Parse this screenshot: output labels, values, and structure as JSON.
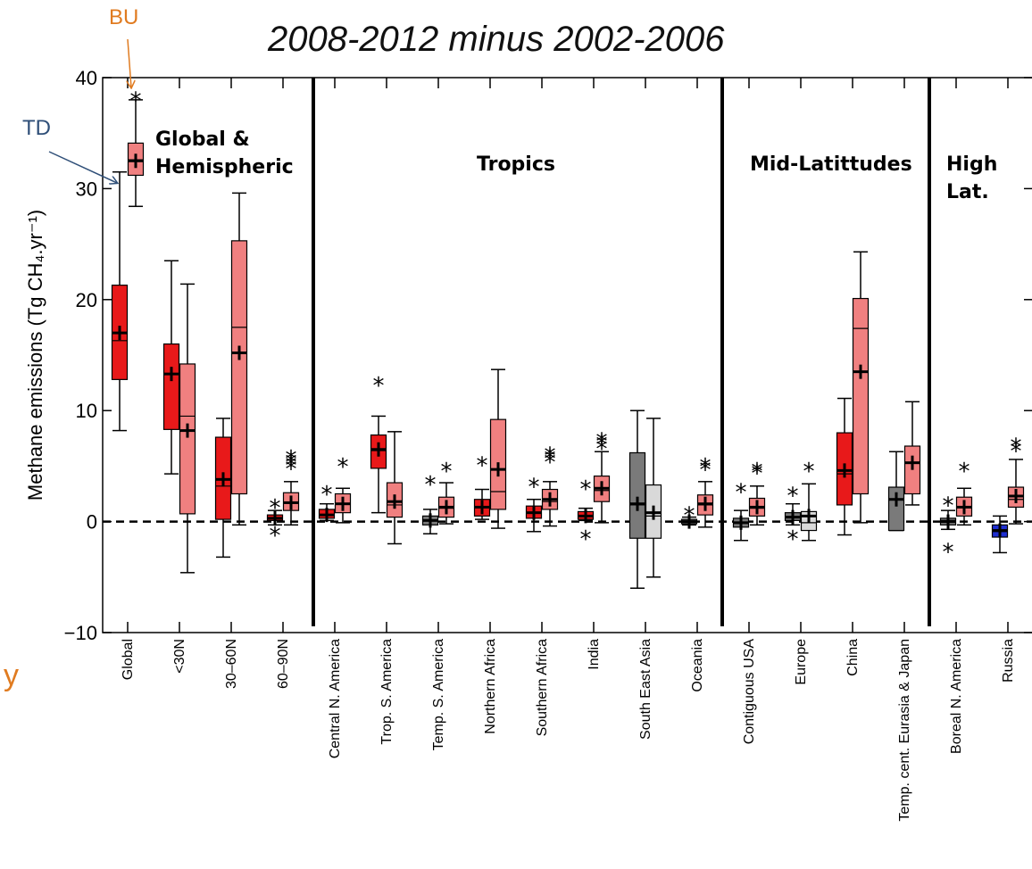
{
  "title": "2008-2012 minus 2002-2006",
  "annotations": {
    "bu": "BU",
    "td": "TD",
    "stray_char": "y"
  },
  "colors": {
    "bu_arrow": "#e07b20",
    "td_arrow": "#2f4f78",
    "td_red": "#e8191a",
    "bu_pink": "#f08080",
    "td_darkgray": "#7a7a7a",
    "bu_lightgray": "#d9d9d9",
    "td_blue": "#1f2fd0"
  },
  "region_labels": {
    "global": [
      "Global &",
      "Hemispheric"
    ],
    "tropics": [
      "Tropics"
    ],
    "mid": [
      "Mid-Latittudes"
    ],
    "high": [
      "High",
      "Lat."
    ]
  },
  "chart_data": {
    "type": "box",
    "ylabel": "Methane emissions (Tg CH₄.yr⁻¹)",
    "ylim": [
      -10,
      40
    ],
    "yticks": [
      -10,
      0,
      10,
      20,
      30,
      40
    ],
    "reference_line": 0,
    "categories": [
      "Global",
      "<30N",
      "30–60N",
      "60–90N",
      "Central N. America",
      "Trop. S. America",
      "Temp. S. America",
      "Northern Africa",
      "Southern Africa",
      "India",
      "South East Asia",
      "Oceania",
      "Contiguous USA",
      "Europe",
      "China",
      "Temp. cent. Eurasia & Japan",
      "Boreal N. America",
      "Russia"
    ],
    "region_dividers_after": [
      3,
      11,
      15
    ],
    "series": [
      {
        "name": "TD",
        "boxes": [
          {
            "min": 8.2,
            "q1": 12.8,
            "median": 16.3,
            "q3": 21.3,
            "max": 31.5,
            "mean": 17.0,
            "outliers": []
          },
          {
            "min": 4.3,
            "q1": 8.3,
            "median": 13.3,
            "q3": 16.0,
            "max": 23.5,
            "mean": 13.3,
            "outliers": []
          },
          {
            "min": -3.2,
            "q1": 0.2,
            "median": 3.2,
            "q3": 7.6,
            "max": 9.3,
            "mean": 3.8,
            "outliers": []
          },
          {
            "min": -0.3,
            "q1": 0.1,
            "median": 0.3,
            "q3": 0.6,
            "max": 1.0,
            "mean": 0.3,
            "outliers": [
              -1.0,
              1.5
            ]
          },
          {
            "min": 0.1,
            "q1": 0.3,
            "median": 0.6,
            "q3": 1.1,
            "max": 1.6,
            "mean": 0.6,
            "outliers": [
              2.7
            ]
          },
          {
            "min": 0.8,
            "q1": 4.8,
            "median": 6.4,
            "q3": 7.8,
            "max": 9.5,
            "mean": 6.5,
            "outliers": [
              12.5
            ]
          },
          {
            "min": -1.1,
            "q1": -0.3,
            "median": 0.1,
            "q3": 0.5,
            "max": 1.1,
            "mean": 0.1,
            "outliers": [
              3.6
            ]
          },
          {
            "min": 0.2,
            "q1": 0.5,
            "median": 1.3,
            "q3": 2.0,
            "max": 2.9,
            "mean": 1.3,
            "outliers": [
              5.3
            ]
          },
          {
            "min": -0.9,
            "q1": 0.3,
            "median": 0.8,
            "q3": 1.4,
            "max": 2.0,
            "mean": 0.8,
            "outliers": [
              3.4
            ]
          },
          {
            "min": 0.1,
            "q1": 0.2,
            "median": 0.5,
            "q3": 0.9,
            "max": 1.2,
            "mean": 0.5,
            "outliers": [
              -1.3,
              3.2
            ]
          },
          {
            "min": -6.0,
            "q1": -1.5,
            "median": 1.5,
            "q3": 6.2,
            "max": 10.0,
            "mean": 1.6,
            "outliers": []
          },
          {
            "min": -0.3,
            "q1": -0.2,
            "median": 0.0,
            "q3": 0.2,
            "max": 0.4,
            "mean": 0.0,
            "outliers": [
              0.8
            ]
          },
          {
            "min": -1.7,
            "q1": -0.5,
            "median": -0.1,
            "q3": 0.3,
            "max": 1.0,
            "mean": -0.1,
            "outliers": [
              2.9
            ]
          },
          {
            "min": -0.3,
            "q1": 0.1,
            "median": 0.4,
            "q3": 0.8,
            "max": 1.6,
            "mean": 0.4,
            "outliers": [
              2.6,
              -1.3
            ]
          },
          {
            "min": -1.2,
            "q1": 1.5,
            "median": 4.3,
            "q3": 8.0,
            "max": 11.1,
            "mean": 4.6,
            "outliers": []
          },
          {
            "min": -0.8,
            "q1": -0.8,
            "median": 2.0,
            "q3": 3.1,
            "max": 6.3,
            "mean": 2.0,
            "outliers": []
          },
          {
            "min": -0.7,
            "q1": -0.3,
            "median": 0.1,
            "q3": 0.3,
            "max": 1.0,
            "mean": 0.0,
            "outliers": [
              1.7,
              -2.5
            ]
          },
          {
            "min": -2.8,
            "q1": -1.4,
            "median": -0.9,
            "q3": -0.3,
            "max": 0.5,
            "mean": -0.8,
            "outliers": []
          }
        ]
      },
      {
        "name": "BU",
        "boxes": [
          {
            "min": 28.4,
            "q1": 31.2,
            "median": 32.6,
            "q3": 34.1,
            "max": 38.0,
            "mean": 32.5,
            "outliers": [
              38.2
            ]
          },
          {
            "min": -4.6,
            "q1": 0.7,
            "median": 9.5,
            "q3": 14.2,
            "max": 21.4,
            "mean": 8.2,
            "outliers": []
          },
          {
            "min": -0.3,
            "q1": 2.5,
            "median": 17.5,
            "q3": 25.3,
            "max": 29.6,
            "mean": 15.2,
            "outliers": []
          },
          {
            "min": -0.3,
            "q1": 1.0,
            "median": 1.7,
            "q3": 2.6,
            "max": 3.6,
            "mean": 1.7,
            "outliers": [
              5.0,
              5.3,
              5.6,
              5.9
            ]
          },
          {
            "min": -0.1,
            "q1": 0.8,
            "median": 1.6,
            "q3": 2.5,
            "max": 3.0,
            "mean": 1.6,
            "outliers": [
              5.2
            ]
          },
          {
            "min": -2.0,
            "q1": 0.4,
            "median": 1.5,
            "q3": 3.5,
            "max": 8.1,
            "mean": 1.8,
            "outliers": []
          },
          {
            "min": -0.2,
            "q1": 0.4,
            "median": 1.2,
            "q3": 2.2,
            "max": 3.5,
            "mean": 1.3,
            "outliers": [
              4.8
            ]
          },
          {
            "min": -0.6,
            "q1": 1.1,
            "median": 2.7,
            "q3": 9.2,
            "max": 13.7,
            "mean": 4.7,
            "outliers": []
          },
          {
            "min": -0.4,
            "q1": 1.1,
            "median": 1.8,
            "q3": 2.9,
            "max": 3.6,
            "mean": 2.0,
            "outliers": [
              5.6,
              5.9,
              6.2
            ]
          },
          {
            "min": -0.1,
            "q1": 1.8,
            "median": 2.8,
            "q3": 4.1,
            "max": 6.3,
            "mean": 3.0,
            "outliers": [
              6.8,
              7.2,
              7.5
            ]
          },
          {
            "min": -5.0,
            "q1": -1.5,
            "median": 0.5,
            "q3": 3.3,
            "max": 9.3,
            "mean": 0.8,
            "outliers": []
          },
          {
            "min": -0.5,
            "q1": 0.6,
            "median": 1.5,
            "q3": 2.4,
            "max": 3.6,
            "mean": 1.6,
            "outliers": [
              4.9,
              5.2
            ]
          },
          {
            "min": -0.3,
            "q1": 0.5,
            "median": 1.2,
            "q3": 2.1,
            "max": 3.2,
            "mean": 1.3,
            "outliers": [
              4.6,
              4.8
            ]
          },
          {
            "min": -1.7,
            "q1": -0.8,
            "median": -0.1,
            "q3": 0.9,
            "max": 3.4,
            "mean": 0.5,
            "outliers": [
              4.8
            ]
          },
          {
            "min": -0.1,
            "q1": 2.5,
            "median": 17.4,
            "q3": 20.1,
            "max": 24.3,
            "mean": 13.5,
            "outliers": []
          },
          {
            "min": 1.5,
            "q1": 2.5,
            "median": 5.3,
            "q3": 6.8,
            "max": 10.8,
            "mean": 5.3,
            "outliers": []
          },
          {
            "min": -0.3,
            "q1": 0.5,
            "median": 1.3,
            "q3": 2.2,
            "max": 3.0,
            "mean": 1.3,
            "outliers": [
              4.8
            ]
          },
          {
            "min": -0.2,
            "q1": 1.3,
            "median": 2.0,
            "q3": 3.1,
            "max": 5.6,
            "mean": 2.3,
            "outliers": [
              6.6,
              7.0
            ]
          }
        ]
      }
    ]
  }
}
